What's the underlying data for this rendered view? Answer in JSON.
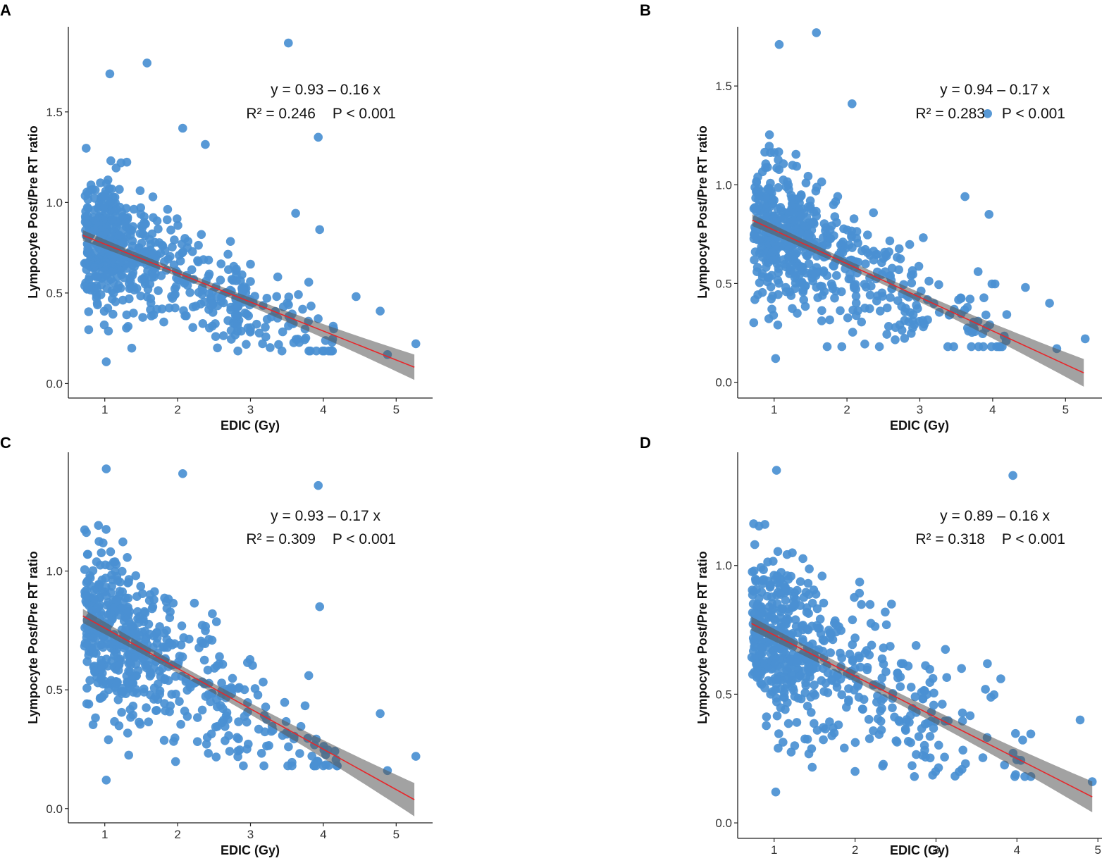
{
  "figure": {
    "panels": [
      "A",
      "B",
      "C",
      "D"
    ]
  },
  "chart_data": [
    {
      "panel": "A",
      "type": "scatter",
      "xlabel": "EDIC (Gy)",
      "ylabel": "Lympocyte Post/Pre RT ratio",
      "xlim": [
        0.5,
        5.5
      ],
      "ylim": [
        -0.08,
        1.97
      ],
      "xticks": [
        1,
        2,
        3,
        4,
        5
      ],
      "xtick_labels": [
        "1",
        "2",
        "3",
        "4",
        "5"
      ],
      "yticks": [
        0.0,
        0.5,
        1.0,
        1.5
      ],
      "ytick_labels": [
        "0.0",
        "0.5",
        "1.0",
        "1.5"
      ],
      "regression": {
        "intercept": 0.93,
        "slope": -0.16,
        "x_range": [
          0.7,
          5.25
        ],
        "ci_halfwidth_min": 0.02,
        "ci_halfwidth_max": 0.07
      },
      "equation": "y = 0.93 – 0.16 x",
      "r2": "R² = 0.246",
      "p_value": "P < 0.001",
      "outliers": [
        [
          3.52,
          1.88
        ],
        [
          1.58,
          1.77
        ],
        [
          1.07,
          1.71
        ],
        [
          2.07,
          1.41
        ],
        [
          2.38,
          1.32
        ],
        [
          3.93,
          1.36
        ],
        [
          3.62,
          0.94
        ],
        [
          3.95,
          0.85
        ],
        [
          1.02,
          0.12
        ],
        [
          4.88,
          0.16
        ],
        [
          5.27,
          0.22
        ],
        [
          4.45,
          0.48
        ],
        [
          4.78,
          0.4
        ],
        [
          3.8,
          0.56
        ],
        [
          1.05,
          0.29
        ]
      ],
      "n_points": 620,
      "seed": 11
    },
    {
      "panel": "B",
      "type": "scatter",
      "xlabel": "EDIC (Gy)",
      "ylabel": "Lympocyte Post/Pre RT ratio",
      "xlim": [
        0.5,
        5.5
      ],
      "ylim": [
        -0.08,
        1.8
      ],
      "xticks": [
        1,
        2,
        3,
        4,
        5
      ],
      "xtick_labels": [
        "1",
        "2",
        "3",
        "4",
        "5"
      ],
      "yticks": [
        0.0,
        0.5,
        1.0,
        1.5
      ],
      "ytick_labels": [
        "0.0",
        "0.5",
        "1.0",
        "1.5"
      ],
      "regression": {
        "intercept": 0.94,
        "slope": -0.17,
        "x_range": [
          0.7,
          5.25
        ],
        "ci_halfwidth_min": 0.02,
        "ci_halfwidth_max": 0.07
      },
      "equation": "y = 0.94 – 0.17 x",
      "r2": "R² = 0.283",
      "p_value": "P < 0.001",
      "outliers": [
        [
          1.58,
          1.77
        ],
        [
          1.07,
          1.71
        ],
        [
          2.07,
          1.41
        ],
        [
          3.93,
          1.36
        ],
        [
          3.62,
          0.94
        ],
        [
          3.95,
          0.85
        ],
        [
          1.02,
          0.12
        ],
        [
          4.88,
          0.17
        ],
        [
          5.27,
          0.22
        ],
        [
          4.45,
          0.48
        ],
        [
          4.78,
          0.4
        ],
        [
          3.8,
          0.56
        ],
        [
          1.05,
          0.29
        ]
      ],
      "n_points": 600,
      "seed": 23
    },
    {
      "panel": "C",
      "type": "scatter",
      "xlabel": "EDIC (Gy)",
      "ylabel": "Lympocyte Post/Pre RT ratio",
      "xlim": [
        0.5,
        5.5
      ],
      "ylim": [
        -0.06,
        1.5
      ],
      "xticks": [
        1,
        2,
        3,
        4,
        5
      ],
      "xtick_labels": [
        "1",
        "2",
        "3",
        "4",
        "5"
      ],
      "yticks": [
        0.0,
        0.5,
        1.0
      ],
      "ytick_labels": [
        "0.0",
        "0.5",
        "1.0"
      ],
      "regression": {
        "intercept": 0.93,
        "slope": -0.17,
        "x_range": [
          0.7,
          5.25
        ],
        "ci_halfwidth_min": 0.02,
        "ci_halfwidth_max": 0.07
      },
      "equation": "y = 0.93 – 0.17 x",
      "r2": "R² = 0.309",
      "p_value": "P < 0.001",
      "outliers": [
        [
          1.02,
          1.43
        ],
        [
          2.07,
          1.41
        ],
        [
          3.93,
          1.36
        ],
        [
          3.95,
          0.85
        ],
        [
          1.02,
          0.12
        ],
        [
          4.88,
          0.16
        ],
        [
          5.27,
          0.22
        ],
        [
          4.78,
          0.4
        ],
        [
          3.8,
          0.56
        ],
        [
          1.05,
          0.29
        ]
      ],
      "n_points": 580,
      "seed": 37
    },
    {
      "panel": "D",
      "type": "scatter",
      "xlabel": "EDIC (Gy)",
      "ylabel": "Lympocyte Post/Pre RT ratio",
      "xlim": [
        0.55,
        5.05
      ],
      "ylim": [
        -0.06,
        1.44
      ],
      "xticks": [
        1,
        2,
        3,
        4,
        5
      ],
      "xtick_labels": [
        "1",
        "2",
        "3",
        "4",
        "5"
      ],
      "yticks": [
        0.0,
        0.5,
        1.0
      ],
      "ytick_labels": [
        "0.0",
        "0.5",
        "1.0"
      ],
      "regression": {
        "intercept": 0.89,
        "slope": -0.16,
        "x_range": [
          0.72,
          4.93
        ],
        "ci_halfwidth_min": 0.02,
        "ci_halfwidth_max": 0.06
      },
      "equation": "y = 0.89 – 0.16 x",
      "r2": "R² = 0.318",
      "p_value": "P < 0.001",
      "outliers": [
        [
          1.03,
          1.37
        ],
        [
          3.95,
          1.35
        ],
        [
          1.02,
          0.12
        ],
        [
          4.93,
          0.16
        ],
        [
          4.78,
          0.4
        ],
        [
          3.8,
          0.56
        ],
        [
          1.05,
          0.29
        ],
        [
          2.0,
          0.2
        ],
        [
          2.45,
          0.85
        ]
      ],
      "n_points": 560,
      "seed": 53
    }
  ]
}
